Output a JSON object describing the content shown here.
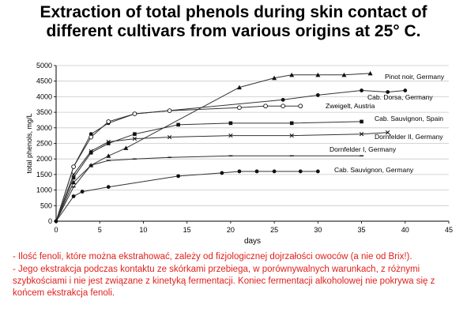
{
  "title_line1": "Extraction of total phenols during skin contact of",
  "title_line2": "different cultivars from various origins at 25° C.",
  "notes": [
    "- Ilość fenoli, które można ekstrahować, zależy od fizjologicznej dojrzałości owoców (a nie od Brix!).",
    "- Jego ekstrakcja podczas kontaktu ze skórkami przebiega, w porównywalnych  warunkach, z różnymi szybkościami i nie jest związane z kinetyką fermentacji. Koniec fermentacji alkoholowej  nie pokrywa się z końcem ekstrakcja fenoli."
  ],
  "colors": {
    "notes": "#e0201b",
    "series": "#333333"
  },
  "chart_data": {
    "type": "line",
    "xlabel": "days",
    "ylabel": "total phenols, mg/L",
    "xlim": [
      0,
      45
    ],
    "ylim": [
      0,
      5000
    ],
    "x_ticks": [
      0,
      5,
      10,
      15,
      20,
      25,
      30,
      35,
      40,
      45
    ],
    "y_ticks": [
      0,
      500,
      1000,
      1500,
      2000,
      2500,
      3000,
      3500,
      4000,
      4500,
      5000
    ],
    "grid": "horizontal",
    "legend": "labels at series end",
    "series": [
      {
        "name": "Pinot noir, Germany",
        "marker": "triangle",
        "x": [
          0,
          2,
          4,
          6,
          8,
          21,
          25,
          27,
          30,
          33,
          36
        ],
        "y": [
          0,
          1250,
          1800,
          2100,
          2350,
          4300,
          4600,
          4700,
          4700,
          4700,
          4750
        ]
      },
      {
        "name": "Cab. Dorsa, Germany",
        "marker": "circle",
        "x": [
          0,
          2,
          4,
          6,
          9,
          26,
          30,
          35,
          38,
          40
        ],
        "y": [
          0,
          1750,
          2800,
          3150,
          3450,
          3900,
          4050,
          4200,
          4150,
          4200
        ]
      },
      {
        "name": "Zweigelt, Austria",
        "marker": "open-circle",
        "x": [
          0,
          2,
          4,
          6,
          9,
          13,
          21,
          24,
          26,
          28
        ],
        "y": [
          0,
          1750,
          2700,
          3200,
          3450,
          3550,
          3650,
          3700,
          3700,
          3700
        ]
      },
      {
        "name": "Cab. Sauvignon, Spain",
        "marker": "square",
        "x": [
          0,
          2,
          4,
          6,
          9,
          14,
          20,
          27,
          35
        ],
        "y": [
          0,
          1400,
          2200,
          2500,
          2800,
          3100,
          3150,
          3150,
          3200
        ]
      },
      {
        "name": "Dornfelder II, Germany",
        "marker": "x",
        "x": [
          0,
          2,
          4,
          6,
          9,
          13,
          20,
          27,
          35,
          38
        ],
        "y": [
          0,
          1500,
          2250,
          2550,
          2650,
          2700,
          2750,
          2750,
          2800,
          2850
        ]
      },
      {
        "name": "Dornfelder I, Germany",
        "marker": "dash",
        "x": [
          0,
          2,
          4,
          6,
          9,
          13,
          20,
          27,
          35
        ],
        "y": [
          0,
          1100,
          1800,
          1950,
          2000,
          2050,
          2100,
          2100,
          2100
        ]
      },
      {
        "name": "Cab. Sauvignon, Germany",
        "marker": "circle",
        "x": [
          0,
          2,
          3,
          6,
          14,
          19,
          21,
          23,
          25,
          28,
          30
        ],
        "y": [
          0,
          800,
          950,
          1100,
          1450,
          1550,
          1600,
          1600,
          1600,
          1600,
          1600
        ]
      }
    ]
  }
}
